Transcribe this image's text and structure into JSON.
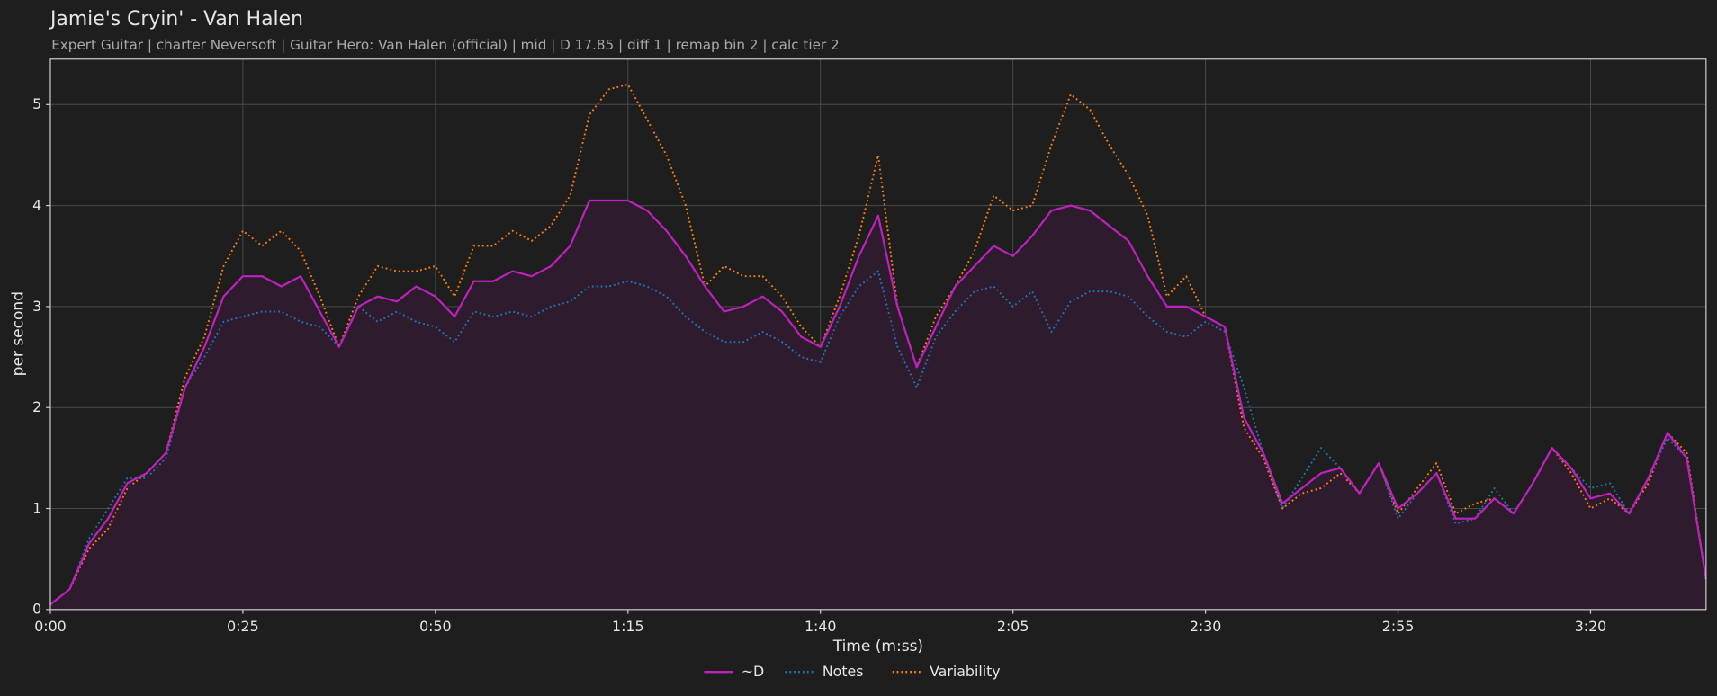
{
  "chart_data": {
    "type": "line",
    "title": "Jamie's Cryin' - Van Halen",
    "subtitle": "Expert Guitar  |  charter Neversoft  |  Guitar Hero: Van Halen (official)  |  mid  |  D 17.85  |  diff 1  |  remap bin 2  |  calc tier 2",
    "xlabel": "Time (m:ss)",
    "ylabel": "per second",
    "grid": true,
    "legend": "bottom",
    "xlim": [
      0,
      215
    ],
    "ylim": [
      0,
      5.45
    ],
    "xticks": [
      {
        "value": 0,
        "label": "0:00"
      },
      {
        "value": 25,
        "label": "0:25"
      },
      {
        "value": 50,
        "label": "0:50"
      },
      {
        "value": 75,
        "label": "1:15"
      },
      {
        "value": 100,
        "label": "1:40"
      },
      {
        "value": 125,
        "label": "2:05"
      },
      {
        "value": 150,
        "label": "2:30"
      },
      {
        "value": 175,
        "label": "2:55"
      },
      {
        "value": 200,
        "label": "3:20"
      }
    ],
    "yticks": [
      0,
      1,
      2,
      3,
      4,
      5
    ],
    "x": [
      0,
      2.5,
      5,
      7.5,
      10,
      12.5,
      15,
      17.5,
      20,
      22.5,
      25,
      27.5,
      30,
      32.5,
      35,
      37.5,
      40,
      42.5,
      45,
      47.5,
      50,
      52.5,
      55,
      57.5,
      60,
      62.5,
      65,
      67.5,
      70,
      72.5,
      75,
      77.5,
      80,
      82.5,
      85,
      87.5,
      90,
      92.5,
      95,
      97.5,
      100,
      102.5,
      105,
      107.5,
      110,
      112.5,
      115,
      117.5,
      120,
      122.5,
      125,
      127.5,
      130,
      132.5,
      135,
      137.5,
      140,
      142.5,
      145,
      147.5,
      150,
      152.5,
      155,
      157.5,
      160,
      162.5,
      165,
      167.5,
      170,
      172.5,
      175,
      177.5,
      180,
      182.5,
      185,
      187.5,
      190,
      192.5,
      195,
      197.5,
      200,
      202.5,
      205,
      207.5,
      210,
      212.5,
      215
    ],
    "series": [
      {
        "name": "~D",
        "color": "#c020c0",
        "style": "solid",
        "fill": "#2e1c2e",
        "values": [
          0.05,
          0.2,
          0.65,
          0.9,
          1.25,
          1.35,
          1.55,
          2.2,
          2.6,
          3.1,
          3.3,
          3.3,
          3.2,
          3.3,
          2.95,
          2.6,
          3.0,
          3.1,
          3.05,
          3.2,
          3.1,
          2.9,
          3.25,
          3.25,
          3.35,
          3.3,
          3.4,
          3.6,
          4.05,
          4.05,
          4.05,
          3.95,
          3.75,
          3.5,
          3.2,
          2.95,
          3.0,
          3.1,
          2.95,
          2.7,
          2.6,
          3.0,
          3.5,
          3.9,
          3.0,
          2.4,
          2.8,
          3.2,
          3.4,
          3.6,
          3.5,
          3.7,
          3.95,
          4.0,
          3.95,
          3.8,
          3.65,
          3.3,
          3.0,
          3.0,
          2.9,
          2.8,
          1.9,
          1.55,
          1.05,
          1.2,
          1.35,
          1.4,
          1.15,
          1.45,
          1.0,
          1.15,
          1.35,
          0.9,
          0.9,
          1.1,
          0.95,
          1.25,
          1.6,
          1.4,
          1.1,
          1.15,
          0.95,
          1.3,
          1.75,
          1.5,
          0.3
        ]
      },
      {
        "name": "Notes",
        "color": "#1f77b4",
        "style": "dotted",
        "values": [
          0.05,
          0.2,
          0.7,
          1.0,
          1.3,
          1.3,
          1.5,
          2.2,
          2.5,
          2.85,
          2.9,
          2.95,
          2.95,
          2.85,
          2.8,
          2.6,
          3.0,
          2.85,
          2.95,
          2.85,
          2.8,
          2.65,
          2.95,
          2.9,
          2.95,
          2.9,
          3.0,
          3.05,
          3.2,
          3.2,
          3.25,
          3.2,
          3.1,
          2.9,
          2.75,
          2.65,
          2.65,
          2.75,
          2.65,
          2.5,
          2.45,
          2.9,
          3.2,
          3.35,
          2.6,
          2.2,
          2.7,
          2.95,
          3.15,
          3.2,
          3.0,
          3.15,
          2.75,
          3.05,
          3.15,
          3.15,
          3.1,
          2.9,
          2.75,
          2.7,
          2.85,
          2.75,
          2.2,
          1.55,
          1.0,
          1.3,
          1.6,
          1.4,
          1.15,
          1.45,
          0.9,
          1.15,
          1.35,
          0.85,
          0.9,
          1.2,
          0.95,
          1.25,
          1.6,
          1.4,
          1.2,
          1.25,
          0.95,
          1.3,
          1.7,
          1.5,
          0.3
        ]
      },
      {
        "name": "Variability",
        "color": "#ff7f0e",
        "style": "dotted",
        "values": [
          0.05,
          0.2,
          0.6,
          0.8,
          1.2,
          1.35,
          1.55,
          2.3,
          2.7,
          3.4,
          3.75,
          3.6,
          3.75,
          3.55,
          3.1,
          2.6,
          3.1,
          3.4,
          3.35,
          3.35,
          3.4,
          3.1,
          3.6,
          3.6,
          3.75,
          3.65,
          3.8,
          4.1,
          4.9,
          5.15,
          5.2,
          4.85,
          4.5,
          4.0,
          3.2,
          3.4,
          3.3,
          3.3,
          3.1,
          2.8,
          2.6,
          3.1,
          3.7,
          4.5,
          3.0,
          2.4,
          2.9,
          3.2,
          3.55,
          4.1,
          3.95,
          4.0,
          4.6,
          5.1,
          4.95,
          4.6,
          4.3,
          3.9,
          3.1,
          3.3,
          2.9,
          2.8,
          1.8,
          1.5,
          1.0,
          1.15,
          1.2,
          1.35,
          1.15,
          1.45,
          0.95,
          1.2,
          1.45,
          0.95,
          1.05,
          1.1,
          0.95,
          1.25,
          1.6,
          1.35,
          1.0,
          1.1,
          0.95,
          1.25,
          1.75,
          1.55,
          0.3
        ]
      }
    ]
  }
}
